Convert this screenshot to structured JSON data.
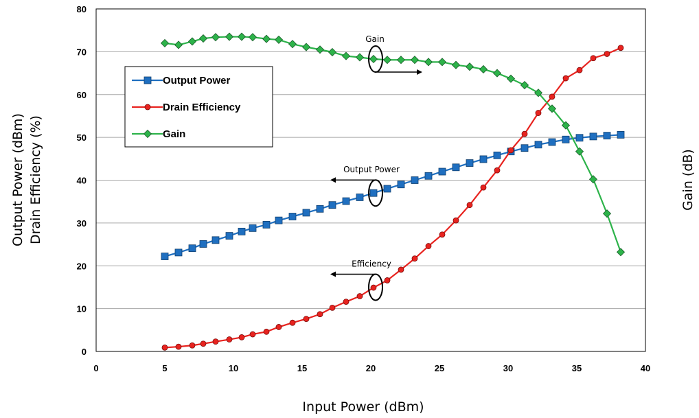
{
  "chart_data": {
    "type": "line",
    "xlabel": "Input Power (dBm)",
    "ylabel_left": [
      "Output Power (dBm)",
      "Drain Efficiency (%)"
    ],
    "ylabel_right": "Gain (dB)",
    "xlim": [
      0,
      40
    ],
    "ylim": [
      0,
      80
    ],
    "xticks": [
      0,
      5,
      10,
      15,
      20,
      25,
      30,
      35,
      40
    ],
    "yticks": [
      0,
      10,
      20,
      30,
      40,
      50,
      60,
      70,
      80
    ],
    "grid": true,
    "legend_position": "upper-left",
    "x": [
      5.0,
      6.0,
      7.0,
      7.8,
      8.7,
      9.7,
      10.6,
      11.4,
      12.4,
      13.3,
      14.3,
      15.3,
      16.3,
      17.2,
      18.2,
      19.2,
      20.2,
      21.2,
      22.2,
      23.2,
      24.2,
      25.2,
      26.2,
      27.2,
      28.2,
      29.2,
      30.2,
      31.2,
      32.2,
      33.2,
      34.2,
      35.2,
      36.2,
      37.2,
      38.2
    ],
    "series": [
      {
        "name": "Output Power",
        "color": "#1f6fc0",
        "marker": "square",
        "axis": "left",
        "values": [
          22.2,
          23.1,
          24.1,
          25.1,
          26.0,
          27.0,
          28.0,
          28.8,
          29.6,
          30.6,
          31.5,
          32.4,
          33.3,
          34.2,
          35.1,
          36.0,
          37.0,
          38.0,
          39.0,
          40.0,
          41.0,
          42.0,
          43.0,
          44.0,
          44.9,
          45.8,
          46.7,
          47.5,
          48.3,
          48.9,
          49.5,
          49.9,
          50.2,
          50.4,
          50.6
        ]
      },
      {
        "name": "Drain Efficiency",
        "color": "#e8231f",
        "marker": "circle",
        "axis": "left",
        "values": [
          0.9,
          1.1,
          1.4,
          1.8,
          2.3,
          2.8,
          3.3,
          4.0,
          4.6,
          5.7,
          6.7,
          7.6,
          8.7,
          10.2,
          11.6,
          12.9,
          14.9,
          16.6,
          19.1,
          21.7,
          24.6,
          27.3,
          30.6,
          34.2,
          38.3,
          42.3,
          47.0,
          50.8,
          55.7,
          59.5,
          63.8,
          65.7,
          68.5,
          69.5,
          70.9
        ]
      },
      {
        "name": "Gain",
        "color": "#2db34a",
        "marker": "diamond",
        "axis": "left",
        "values": [
          72.0,
          71.6,
          72.4,
          73.1,
          73.4,
          73.5,
          73.5,
          73.4,
          73.0,
          72.8,
          71.8,
          71.1,
          70.5,
          69.9,
          69.0,
          68.7,
          68.3,
          68.1,
          68.1,
          68.1,
          67.6,
          67.6,
          66.9,
          66.5,
          65.9,
          65.0,
          63.7,
          62.2,
          60.4,
          56.7,
          52.8,
          46.7,
          40.2,
          32.2,
          23.2
        ]
      }
    ],
    "annotations": [
      {
        "text": "Gain",
        "x": 20.2,
        "y": 68.3,
        "arrow": "right"
      },
      {
        "text": "Output Power",
        "x": 20.2,
        "y": 37.0,
        "arrow": "left"
      },
      {
        "text": "Efficiency",
        "x": 20.2,
        "y": 15.0,
        "arrow": "left"
      }
    ]
  }
}
